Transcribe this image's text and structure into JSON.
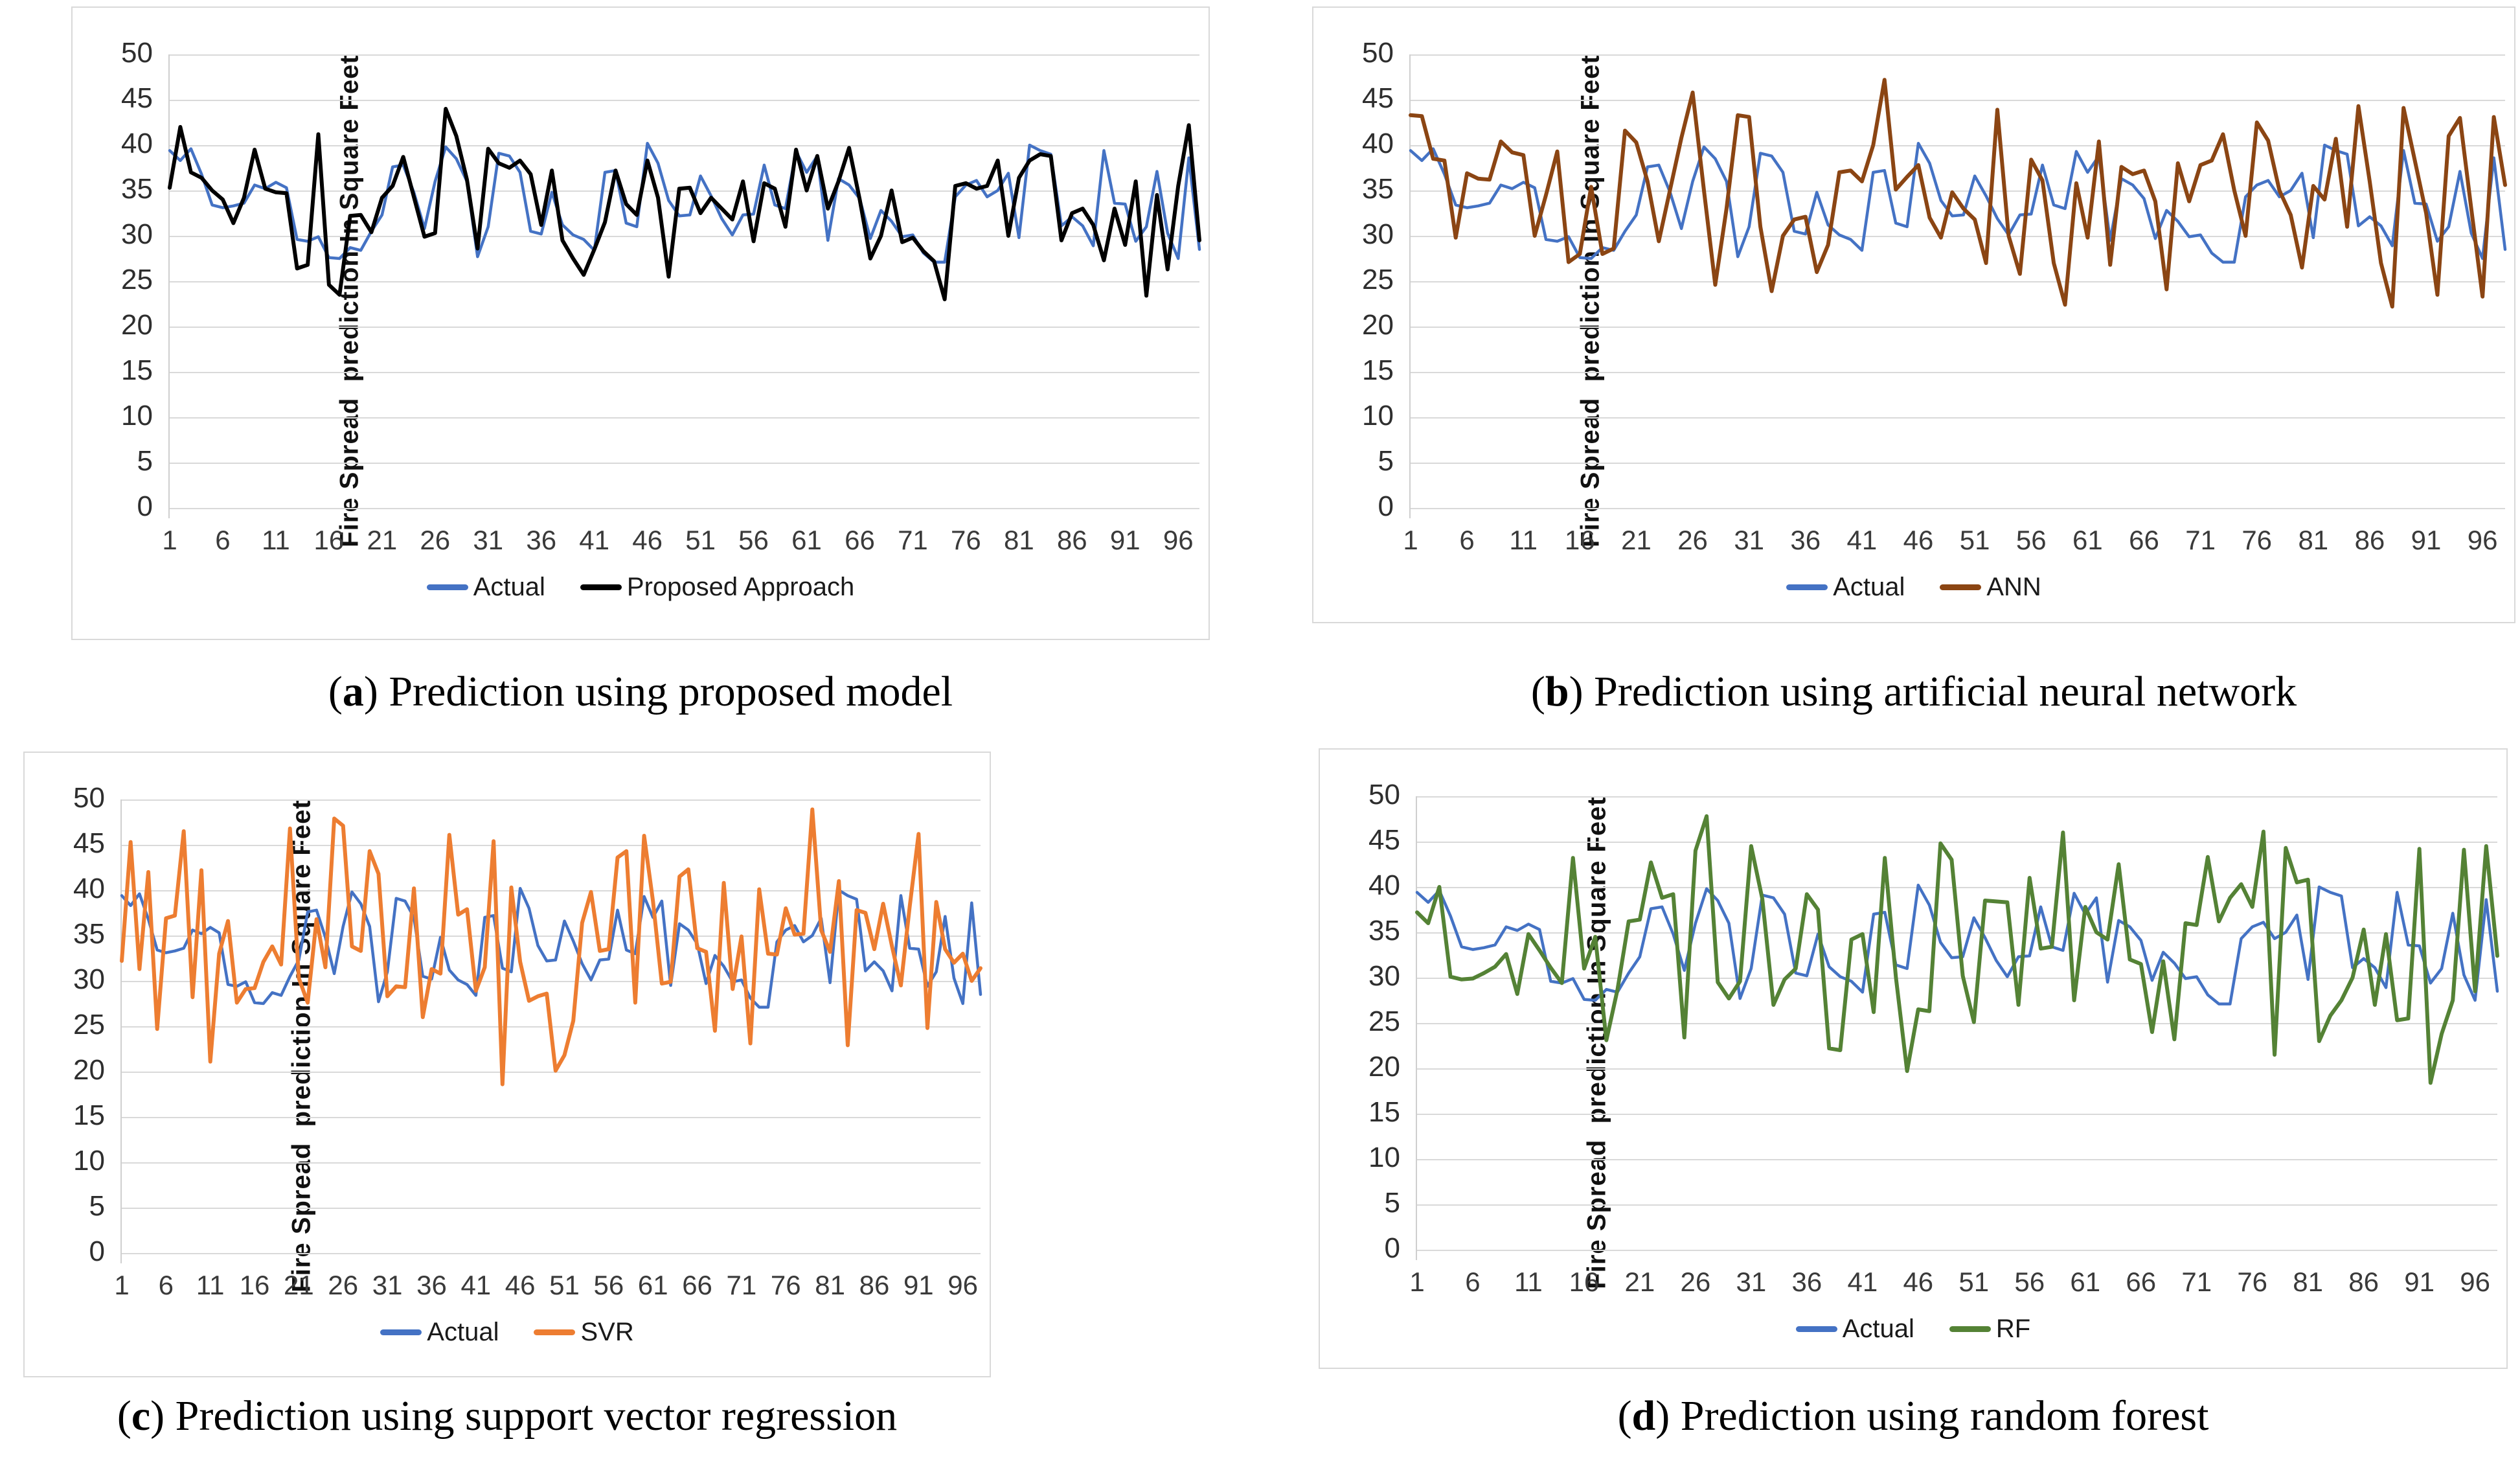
{
  "figure": {
    "y_axis_title": "Fire Spread  prediction In Square Feet",
    "y_ticks": [
      0,
      5,
      10,
      15,
      20,
      25,
      30,
      35,
      40,
      45,
      50
    ],
    "x_ticks": [
      1,
      6,
      11,
      16,
      21,
      26,
      31,
      36,
      41,
      46,
      51,
      56,
      61,
      66,
      71,
      76,
      81,
      86,
      91,
      96
    ],
    "grid_color": "#d9d9d9",
    "colors": {
      "actual_blue": "#4472C4",
      "proposed_black": "#000000",
      "ann_brown": "#8B4513",
      "svr_orange": "#ED7D31",
      "rf_green": "#548235"
    }
  },
  "chart_data": [
    {
      "type": "line",
      "caption_letter": "a",
      "caption_text": ") Prediction using proposed model",
      "caption_open": "(",
      "ylabel": "Fire Spread  prediction In Square Feet",
      "xlabel": "",
      "ylim": [
        0,
        50
      ],
      "yticks": [
        0,
        5,
        10,
        15,
        20,
        25,
        30,
        35,
        40,
        45,
        50
      ],
      "xticks": [
        1,
        6,
        11,
        16,
        21,
        26,
        31,
        36,
        41,
        46,
        51,
        56,
        61,
        66,
        71,
        76,
        81,
        86,
        91,
        96
      ],
      "n_points": 98,
      "grid": true,
      "legend_position": "bottom",
      "series": [
        {
          "name": "Actual",
          "color": "#4472C4",
          "values": [
            39.4,
            38.3,
            39.6,
            36.8,
            33.4,
            33.1,
            33.3,
            33.6,
            35.6,
            35.2,
            35.9,
            35.3,
            29.6,
            29.4,
            29.9,
            27.6,
            27.5,
            28.7,
            28.4,
            30.5,
            32.3,
            37.6,
            37.8,
            34.8,
            30.8,
            36.0,
            39.8,
            38.5,
            36.0,
            27.7,
            31.0,
            39.1,
            38.8,
            37.0,
            30.5,
            30.2,
            34.8,
            31.2,
            30.1,
            29.6,
            28.4,
            37.0,
            37.2,
            31.4,
            31.0,
            40.2,
            38.0,
            33.9,
            32.2,
            32.3,
            36.6,
            34.4,
            31.9,
            30.1,
            32.3,
            32.4,
            37.8,
            33.4,
            33.0,
            39.3,
            37.0,
            38.8,
            29.5,
            36.3,
            35.6,
            34.1,
            29.7,
            32.8,
            31.6,
            29.9,
            30.1,
            28.1,
            27.1,
            27.1,
            34.3,
            35.6,
            36.1,
            34.3,
            35.0,
            36.9,
            29.8,
            40.0,
            39.4,
            39.0,
            31.1,
            32.1,
            31.1,
            28.9,
            39.4,
            33.6,
            33.5,
            29.4,
            31.0,
            37.1,
            30.3,
            27.5,
            38.6,
            28.5
          ]
        },
        {
          "name": "Proposed Approach",
          "color": "#000000",
          "values": [
            35.3,
            42.0,
            37.0,
            36.4,
            35.0,
            34.0,
            31.4,
            34.2,
            39.5,
            35.2,
            34.8,
            34.7,
            26.4,
            26.8,
            41.2,
            24.6,
            23.5,
            32.2,
            32.3,
            30.4,
            34.2,
            35.5,
            38.7,
            34.3,
            29.9,
            30.3,
            44.0,
            41.0,
            36.2,
            28.6,
            39.6,
            38.0,
            37.5,
            38.3,
            36.8,
            31.2,
            37.2,
            29.5,
            27.5,
            25.7,
            28.5,
            31.5,
            37.2,
            33.5,
            32.3,
            38.3,
            34.2,
            25.5,
            35.2,
            35.3,
            32.5,
            34.2,
            33.0,
            31.8,
            36.0,
            29.4,
            35.8,
            35.2,
            31.0,
            39.5,
            35.0,
            38.8,
            33.0,
            36.0,
            39.7,
            34.0,
            27.5,
            30.0,
            35.0,
            29.3,
            29.8,
            28.3,
            27.2,
            23.0,
            35.5,
            35.8,
            35.2,
            35.5,
            38.3,
            30.0,
            36.4,
            38.3,
            39.0,
            38.8,
            29.5,
            32.5,
            33.0,
            31.2,
            27.3,
            33.0,
            29.0,
            36.0,
            23.4,
            34.5,
            26.3,
            35.5,
            42.2,
            29.5
          ]
        }
      ]
    },
    {
      "type": "line",
      "caption_letter": "b",
      "caption_text": ") Prediction using artificial neural network",
      "caption_open": "(",
      "ylabel": "Fire Spread  prediction In Square Feet",
      "xlabel": "",
      "ylim": [
        0,
        50
      ],
      "yticks": [
        0,
        5,
        10,
        15,
        20,
        25,
        30,
        35,
        40,
        45,
        50
      ],
      "xticks": [
        1,
        6,
        11,
        16,
        21,
        26,
        31,
        36,
        41,
        46,
        51,
        56,
        61,
        66,
        71,
        76,
        81,
        86,
        91,
        96
      ],
      "n_points": 98,
      "grid": true,
      "legend_position": "bottom",
      "series": [
        {
          "name": "Actual",
          "color": "#4472C4",
          "values": [
            39.4,
            38.3,
            39.6,
            36.8,
            33.4,
            33.1,
            33.3,
            33.6,
            35.6,
            35.2,
            35.9,
            35.3,
            29.6,
            29.4,
            29.9,
            27.6,
            27.5,
            28.7,
            28.4,
            30.5,
            32.3,
            37.6,
            37.8,
            34.8,
            30.8,
            36.0,
            39.8,
            38.5,
            36.0,
            27.7,
            31.0,
            39.1,
            38.8,
            37.0,
            30.5,
            30.2,
            34.8,
            31.2,
            30.1,
            29.6,
            28.4,
            37.0,
            37.2,
            31.4,
            31.0,
            40.2,
            38.0,
            33.9,
            32.2,
            32.3,
            36.6,
            34.4,
            31.9,
            30.1,
            32.3,
            32.4,
            37.8,
            33.4,
            33.0,
            39.3,
            37.0,
            38.8,
            29.5,
            36.3,
            35.6,
            34.1,
            29.7,
            32.8,
            31.6,
            29.9,
            30.1,
            28.1,
            27.1,
            27.1,
            34.3,
            35.6,
            36.1,
            34.3,
            35.0,
            36.9,
            29.8,
            40.0,
            39.4,
            39.0,
            31.1,
            32.1,
            31.1,
            28.9,
            39.4,
            33.6,
            33.5,
            29.4,
            31.0,
            37.1,
            30.3,
            27.5,
            38.6,
            28.5
          ]
        },
        {
          "name": "ANN",
          "color": "#8B4513",
          "values": [
            43.3,
            43.2,
            38.5,
            38.3,
            29.8,
            36.9,
            36.3,
            36.2,
            40.4,
            39.2,
            38.9,
            30.0,
            34.5,
            39.3,
            27.1,
            28.0,
            35.4,
            28.0,
            28.6,
            41.6,
            40.3,
            36.0,
            29.4,
            35.1,
            40.8,
            45.8,
            35.0,
            24.6,
            33.0,
            43.3,
            43.1,
            31.0,
            23.9,
            30.0,
            31.8,
            32.1,
            26.0,
            29.0,
            37.0,
            37.2,
            36.0,
            40.0,
            47.2,
            35.1,
            36.5,
            37.8,
            32.0,
            29.8,
            34.8,
            33.0,
            31.8,
            27.0,
            43.9,
            30.0,
            25.8,
            38.4,
            36.1,
            27.0,
            22.4,
            35.8,
            29.8,
            40.4,
            26.8,
            37.6,
            36.8,
            37.2,
            33.8,
            24.1,
            38.0,
            33.8,
            37.8,
            38.3,
            41.2,
            35.0,
            30.0,
            42.5,
            40.5,
            35.0,
            32.3,
            26.5,
            35.5,
            34.0,
            40.7,
            31.0,
            44.3,
            36.0,
            27.0,
            22.2,
            44.1,
            38.3,
            32.5,
            23.5,
            41.0,
            43.0,
            33.0,
            23.3,
            43.1,
            35.6
          ]
        }
      ]
    },
    {
      "type": "line",
      "caption_letter": "c",
      "caption_text": ") Prediction using support vector regression",
      "caption_open": "(",
      "ylabel": "Fire Spread  prediction In Square Feet",
      "xlabel": "",
      "ylim": [
        0,
        50
      ],
      "yticks": [
        0,
        5,
        10,
        15,
        20,
        25,
        30,
        35,
        40,
        45,
        50
      ],
      "xticks": [
        1,
        6,
        11,
        16,
        21,
        26,
        31,
        36,
        41,
        46,
        51,
        56,
        61,
        66,
        71,
        76,
        81,
        86,
        91,
        96
      ],
      "n_points": 98,
      "grid": true,
      "legend_position": "bottom",
      "series": [
        {
          "name": "Actual",
          "color": "#4472C4",
          "values": [
            39.4,
            38.3,
            39.6,
            36.8,
            33.4,
            33.1,
            33.3,
            33.6,
            35.6,
            35.2,
            35.9,
            35.3,
            29.6,
            29.4,
            29.9,
            27.6,
            27.5,
            28.7,
            28.4,
            30.5,
            32.3,
            37.6,
            37.8,
            34.8,
            30.8,
            36.0,
            39.8,
            38.5,
            36.0,
            27.7,
            31.0,
            39.1,
            38.8,
            37.0,
            30.5,
            30.2,
            34.8,
            31.2,
            30.1,
            29.6,
            28.4,
            37.0,
            37.2,
            31.4,
            31.0,
            40.2,
            38.0,
            33.9,
            32.2,
            32.3,
            36.6,
            34.4,
            31.9,
            30.1,
            32.3,
            32.4,
            37.8,
            33.4,
            33.0,
            39.3,
            37.0,
            38.8,
            29.5,
            36.3,
            35.6,
            34.1,
            29.7,
            32.8,
            31.6,
            29.9,
            30.1,
            28.1,
            27.1,
            27.1,
            34.3,
            35.6,
            36.1,
            34.3,
            35.0,
            36.9,
            29.8,
            40.0,
            39.4,
            39.0,
            31.1,
            32.1,
            31.1,
            28.9,
            39.4,
            33.6,
            33.5,
            29.4,
            31.0,
            37.1,
            30.3,
            27.5,
            38.6,
            28.5
          ]
        },
        {
          "name": "SVR",
          "color": "#ED7D31",
          "values": [
            32.2,
            45.3,
            31.3,
            42.0,
            24.7,
            36.9,
            37.2,
            46.5,
            28.2,
            42.2,
            21.1,
            33.0,
            36.6,
            27.6,
            29.1,
            29.2,
            32.1,
            33.8,
            31.8,
            46.8,
            30.3,
            27.6,
            36.8,
            31.5,
            47.9,
            47.1,
            33.8,
            33.3,
            44.3,
            41.8,
            28.3,
            29.4,
            29.3,
            40.2,
            26.0,
            31.3,
            30.8,
            46.1,
            37.3,
            37.9,
            28.9,
            31.5,
            45.4,
            18.6,
            40.3,
            32.1,
            27.8,
            28.3,
            28.6,
            20.1,
            21.8,
            25.6,
            36.4,
            39.8,
            33.3,
            33.5,
            43.6,
            44.3,
            27.6,
            46.0,
            38.8,
            29.7,
            29.9,
            41.5,
            42.3,
            33.6,
            33.2,
            24.5,
            40.8,
            29.1,
            34.9,
            23.1,
            40.1,
            33.0,
            32.9,
            38.0,
            35.1,
            35.2,
            48.9,
            35.6,
            33.2,
            41.0,
            22.9,
            37.8,
            37.5,
            33.5,
            38.5,
            33.8,
            29.5,
            38.2,
            46.2,
            24.8,
            38.7,
            33.5,
            32.0,
            33.0,
            30.0,
            31.4
          ]
        }
      ]
    },
    {
      "type": "line",
      "caption_letter": "d",
      "caption_text": ") Prediction using random forest",
      "caption_open": "(",
      "ylabel": "Fire Spread  prediction In Square Feet",
      "xlabel": "",
      "ylim": [
        0,
        50
      ],
      "yticks": [
        0,
        5,
        10,
        15,
        20,
        25,
        30,
        35,
        40,
        45,
        50
      ],
      "xticks": [
        1,
        6,
        11,
        16,
        21,
        26,
        31,
        36,
        41,
        46,
        51,
        56,
        61,
        66,
        71,
        76,
        81,
        86,
        91,
        96
      ],
      "n_points": 98,
      "grid": true,
      "legend_position": "bottom",
      "series": [
        {
          "name": "Actual",
          "color": "#4472C4",
          "values": [
            39.4,
            38.3,
            39.6,
            36.8,
            33.4,
            33.1,
            33.3,
            33.6,
            35.6,
            35.2,
            35.9,
            35.3,
            29.6,
            29.4,
            29.9,
            27.6,
            27.5,
            28.7,
            28.4,
            30.5,
            32.3,
            37.6,
            37.8,
            34.8,
            30.8,
            36.0,
            39.8,
            38.5,
            36.0,
            27.7,
            31.0,
            39.1,
            38.8,
            37.0,
            30.5,
            30.2,
            34.8,
            31.2,
            30.1,
            29.6,
            28.4,
            37.0,
            37.2,
            31.4,
            31.0,
            40.2,
            38.0,
            33.9,
            32.2,
            32.3,
            36.6,
            34.4,
            31.9,
            30.1,
            32.3,
            32.4,
            37.8,
            33.4,
            33.0,
            39.3,
            37.0,
            38.8,
            29.5,
            36.3,
            35.6,
            34.1,
            29.7,
            32.8,
            31.6,
            29.9,
            30.1,
            28.1,
            27.1,
            27.1,
            34.3,
            35.6,
            36.1,
            34.3,
            35.0,
            36.9,
            29.8,
            40.0,
            39.4,
            39.0,
            31.1,
            32.1,
            31.1,
            28.9,
            39.4,
            33.6,
            33.5,
            29.4,
            31.0,
            37.1,
            30.3,
            27.5,
            38.6,
            28.5
          ]
        },
        {
          "name": "RF",
          "color": "#548235",
          "values": [
            37.2,
            36.0,
            40.0,
            30.1,
            29.8,
            29.9,
            30.5,
            31.2,
            32.6,
            28.2,
            34.8,
            33.0,
            31.1,
            29.4,
            43.2,
            31.0,
            34.5,
            23.1,
            28.7,
            36.2,
            36.4,
            42.7,
            38.8,
            39.2,
            23.4,
            44.0,
            47.8,
            29.5,
            27.7,
            29.6,
            44.5,
            38.7,
            27.0,
            29.8,
            31.0,
            39.2,
            37.5,
            22.2,
            22.0,
            34.2,
            34.8,
            26.2,
            43.2,
            30.0,
            19.7,
            26.5,
            26.3,
            44.8,
            43.0,
            30.2,
            25.1,
            38.5,
            38.4,
            38.3,
            27.0,
            41.0,
            33.2,
            33.4,
            46.0,
            27.5,
            37.8,
            35.0,
            34.2,
            42.5,
            32.0,
            31.5,
            24.0,
            31.8,
            23.2,
            36.0,
            35.8,
            43.3,
            36.2,
            38.8,
            40.3,
            37.8,
            46.1,
            21.5,
            44.3,
            40.5,
            40.8,
            23.0,
            25.8,
            27.5,
            30.0,
            35.3,
            27.0,
            34.8,
            25.3,
            25.5,
            44.2,
            18.4,
            23.8,
            27.5,
            44.1,
            28.5,
            44.5,
            32.4
          ]
        }
      ]
    }
  ]
}
